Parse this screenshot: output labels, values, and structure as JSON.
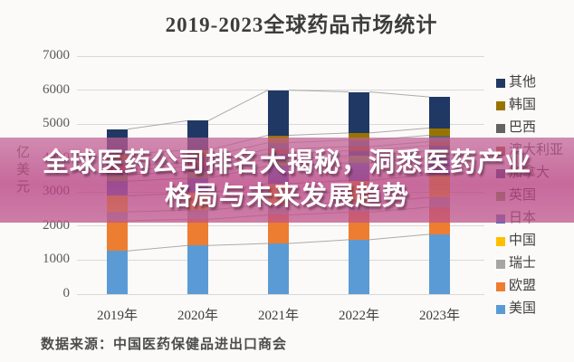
{
  "title": "2019-2023全球药品市场统计",
  "source": "数据来源：中国医药保健品进出口商会",
  "overlay": {
    "line1": "全球医药公司排名大揭秘，洞悉医药产业",
    "line2": "格局与未来发展趋势",
    "bg_color": "#BA4682",
    "text_color": "#FFFFFF"
  },
  "axis": {
    "y_title": "亿美元",
    "y_ticks": [
      7000,
      6000,
      5000,
      4000,
      3000,
      2000,
      1000,
      0
    ],
    "x_labels": [
      "2019年",
      "2020年",
      "2021年",
      "2022年",
      "2023年"
    ]
  },
  "colors": {
    "grid": "#d9d9d9",
    "series_line": "#ababab",
    "title_text": "#3d3d3d",
    "tick_text": "#595959"
  },
  "chart_data": {
    "type": "bar",
    "stacked": true,
    "title": "2019-2023全球药品市场统计",
    "categories": [
      "2019年",
      "2020年",
      "2021年",
      "2022年",
      "2023年"
    ],
    "ylabel": "亿美元",
    "ylim": [
      0,
      7000
    ],
    "y_ticks": [
      7000,
      6000,
      5000,
      4000,
      3000,
      2000,
      1000,
      0
    ],
    "grid": true,
    "legend_position": "right",
    "legend_order_top_to_bottom": [
      "其他",
      "韩国",
      "巴西",
      "澳大利亚",
      "加拿大",
      "英国",
      "日本",
      "中国",
      "瑞士",
      "欧盟",
      "美国"
    ],
    "series_lines": true,
    "series": [
      {
        "name": "美国",
        "color": "#5B9BD5",
        "values": [
          1270,
          1430,
          1490,
          1600,
          1760
        ]
      },
      {
        "name": "欧盟",
        "color": "#ED7D31",
        "values": [
          890,
          770,
          840,
          810,
          800
        ]
      },
      {
        "name": "瑞士",
        "color": "#A5A5A5",
        "values": [
          260,
          270,
          300,
          290,
          280
        ]
      },
      {
        "name": "中国",
        "color": "#FFC000",
        "values": [
          470,
          500,
          620,
          640,
          670
        ]
      },
      {
        "name": "日本",
        "color": "#4472C4",
        "values": [
          430,
          440,
          520,
          520,
          510
        ]
      },
      {
        "name": "英国",
        "color": "#70AD47",
        "values": [
          190,
          195,
          210,
          205,
          200
        ]
      },
      {
        "name": "加拿大",
        "color": "#264478",
        "values": [
          140,
          145,
          160,
          155,
          150
        ]
      },
      {
        "name": "澳大利亚",
        "color": "#9E480E",
        "values": [
          110,
          115,
          125,
          120,
          115
        ]
      },
      {
        "name": "巴西",
        "color": "#636363",
        "values": [
          170,
          175,
          190,
          190,
          185
        ]
      },
      {
        "name": "韩国",
        "color": "#997300",
        "values": [
          190,
          200,
          215,
          210,
          215
        ]
      },
      {
        "name": "其他",
        "color": "#203864",
        "values": [
          730,
          860,
          1330,
          1210,
          915
        ]
      }
    ],
    "totals": [
      4850,
      5100,
      6000,
      5950,
      5800
    ]
  }
}
